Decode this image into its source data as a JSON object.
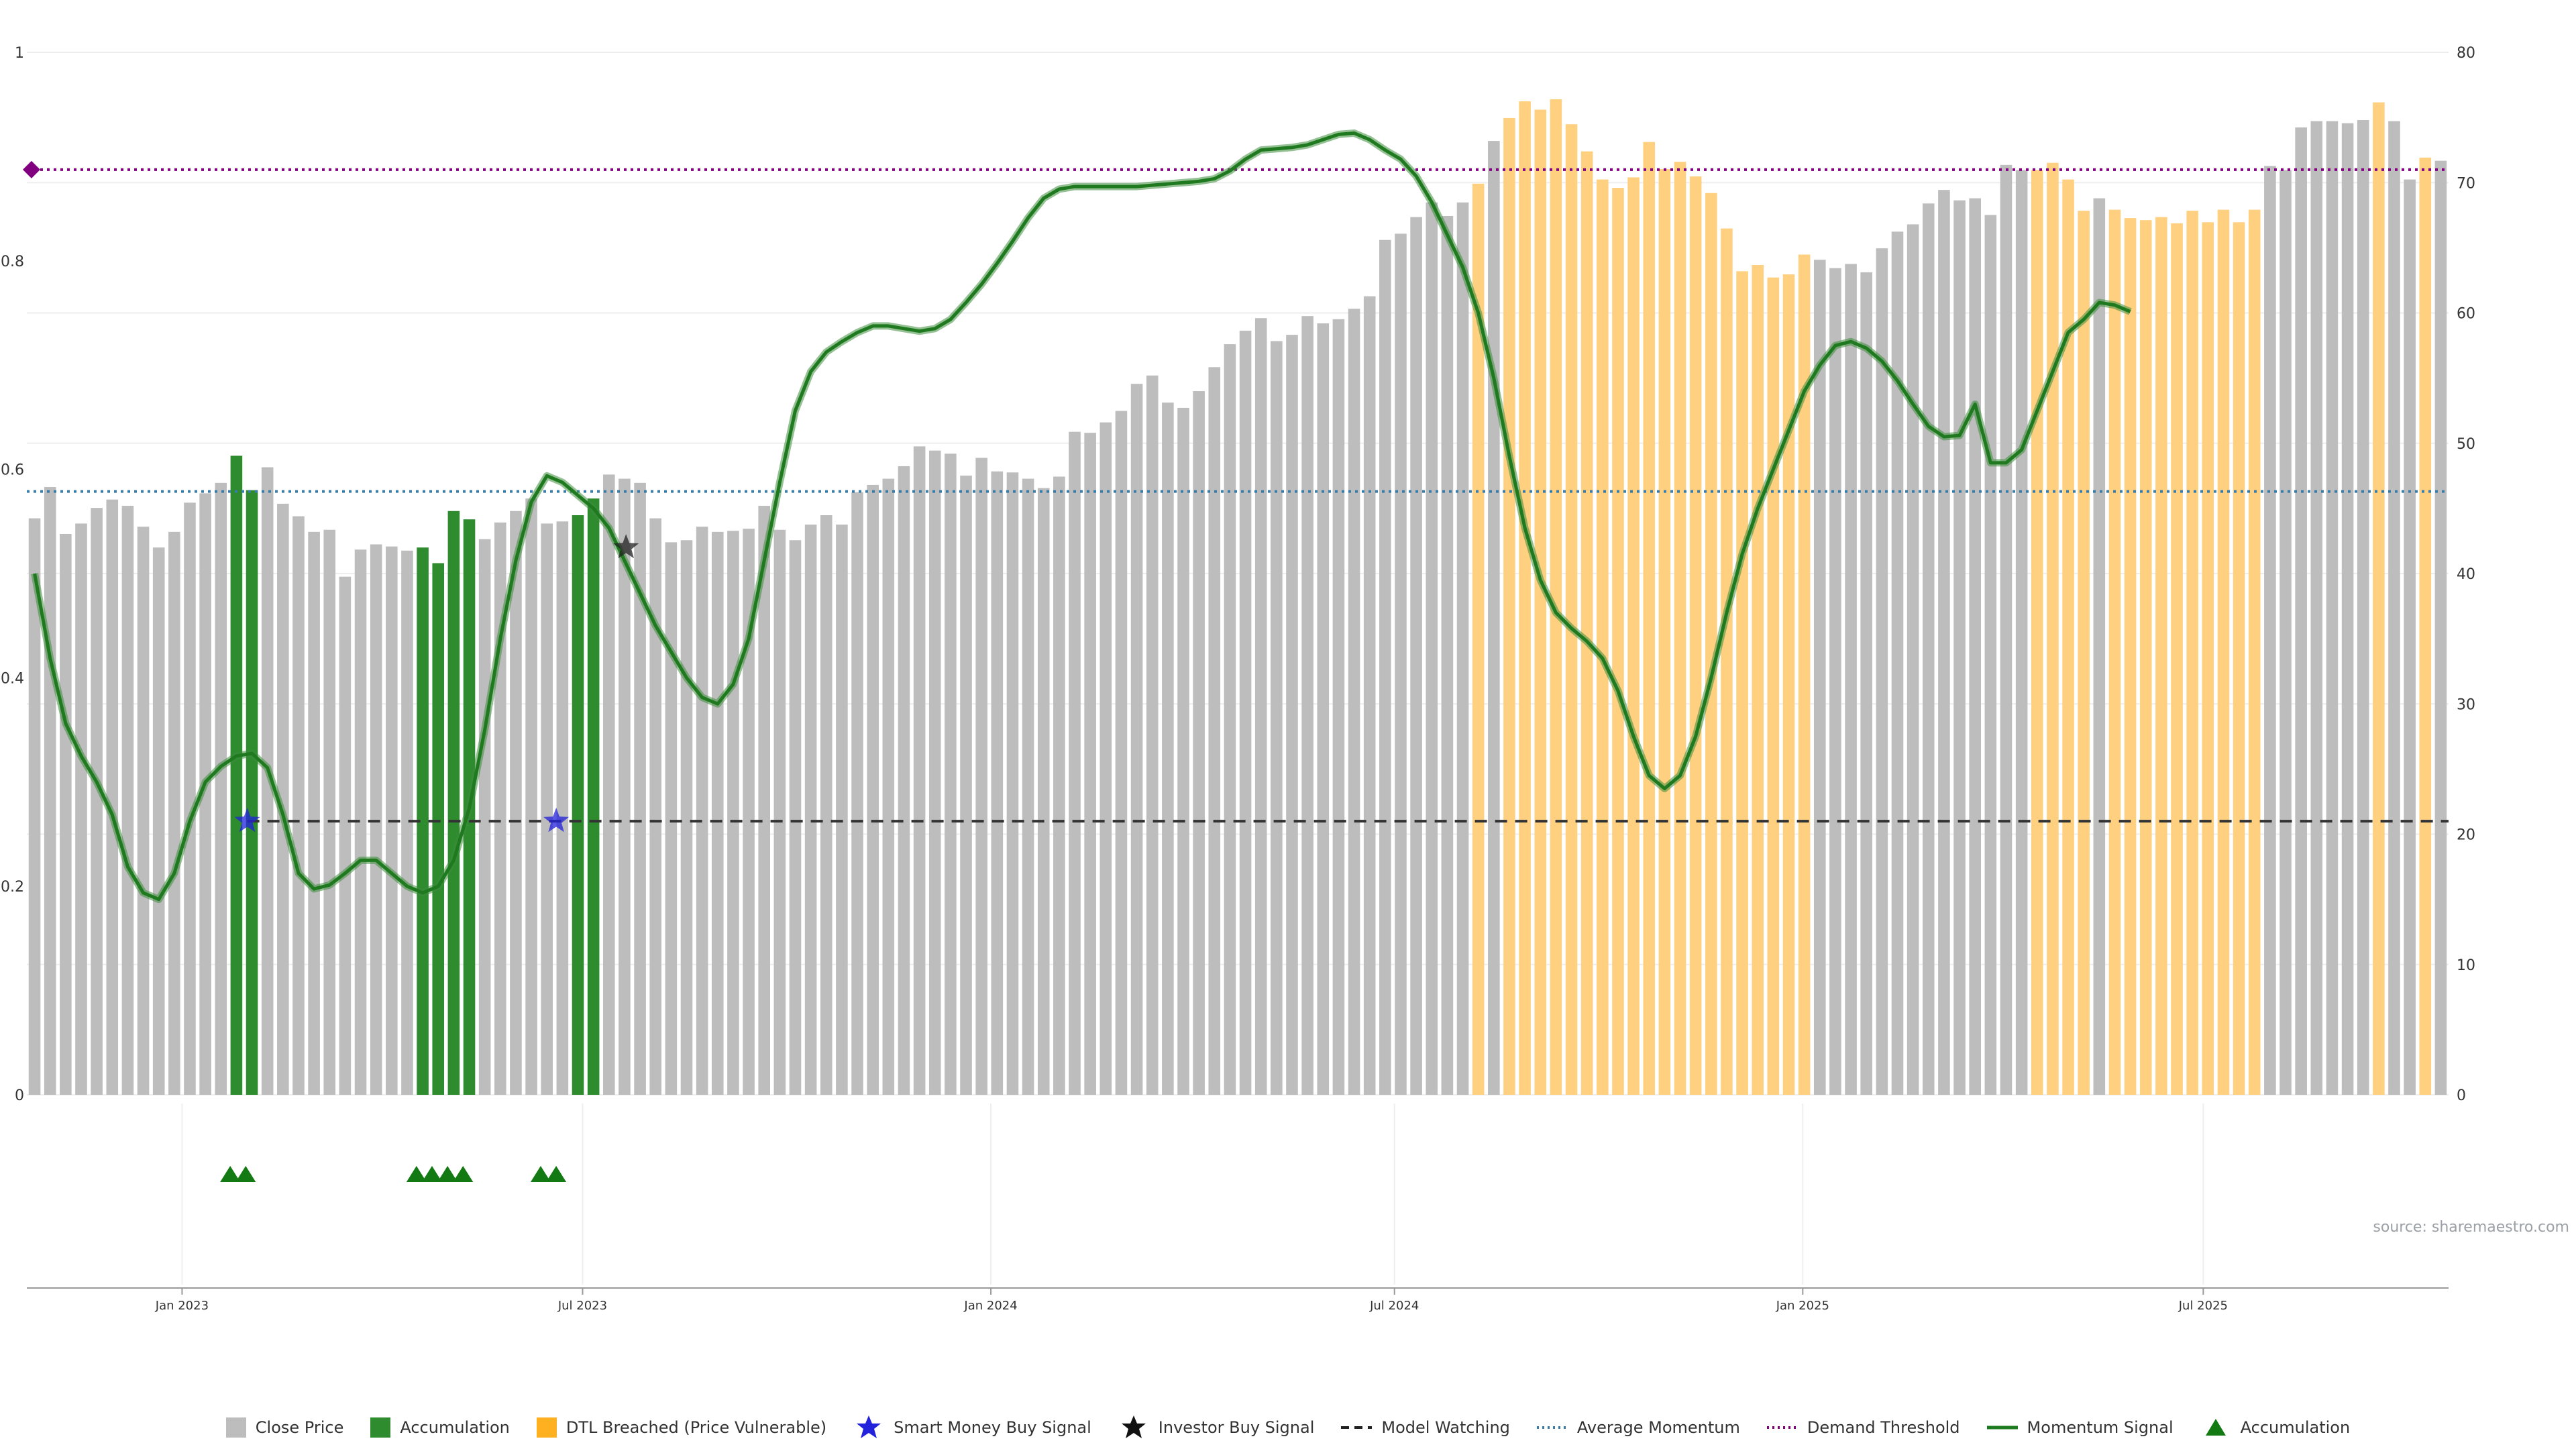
{
  "colors": {
    "close": "#bdbdbd",
    "accumulation": "#2e8b2e",
    "dtl": "#ffd080",
    "dtl_legend": "#ffb020",
    "smart_money": "#2222dd",
    "investor": "#222222",
    "model_watching": "#333333",
    "avg_momentum": "#3a7ca8",
    "demand_threshold": "#800080",
    "momentum": "#1f7a1f",
    "accum_marker": "#137a13"
  },
  "legend": {
    "close_price": "Close Price",
    "accumulation": "Accumulation",
    "dtl": "DTL Breached (Price Vulnerable)",
    "smart_money": "Smart Money Buy Signal",
    "investor": "Investor Buy Signal",
    "model_watching": "Model Watching",
    "avg_momentum": "Average Momentum",
    "demand_threshold": "Demand Threshold",
    "momentum_signal": "Momentum Signal",
    "accumulation_marker": "Accumulation"
  },
  "source": "source: sharemaestro.com",
  "chart_data": {
    "type": "bar",
    "title": "",
    "xlabel": "",
    "ylabel": "",
    "ylim_left": [
      0,
      1
    ],
    "ylim_right": [
      0,
      80
    ],
    "left_ticks": [
      "0",
      "0.2",
      "0.4",
      "0.6",
      "0.8",
      "1"
    ],
    "right_ticks": [
      "0",
      "10",
      "20",
      "30",
      "40",
      "50",
      "60",
      "70",
      "80"
    ],
    "x_tick_labels": [
      "Jan 2023",
      "Jul 2023",
      "Jan 2024",
      "Jul 2024",
      "Jan 2025",
      "Jul 2025"
    ],
    "x_tick_weeks": [
      9.5,
      35.3,
      61.6,
      87.6,
      113.9,
      139.7
    ],
    "close_price": [
      0.553,
      0.583,
      0.538,
      0.548,
      0.563,
      0.571,
      0.565,
      0.545,
      0.525,
      0.54,
      0.568,
      0.577,
      0.587,
      0.613,
      0.58,
      0.602,
      0.567,
      0.555,
      0.54,
      0.542,
      0.497,
      0.523,
      0.528,
      0.526,
      0.522,
      0.525,
      0.51,
      0.56,
      0.552,
      0.533,
      0.549,
      0.56,
      0.572,
      0.548,
      0.55,
      0.556,
      0.572,
      0.595,
      0.591,
      0.587,
      0.553,
      0.53,
      0.532,
      0.545,
      0.54,
      0.541,
      0.543,
      0.565,
      0.542,
      0.532,
      0.547,
      0.556,
      0.547,
      0.578,
      0.585,
      0.591,
      0.603,
      0.622,
      0.618,
      0.615,
      0.594,
      0.611,
      0.598,
      0.597,
      0.591,
      0.582,
      0.593,
      0.636,
      0.635,
      0.645,
      0.656,
      0.682,
      0.69,
      0.664,
      0.659,
      0.675,
      0.698,
      0.72,
      0.733,
      0.745,
      0.723,
      0.729,
      0.747,
      0.74,
      0.744,
      0.754,
      0.766,
      0.82,
      0.826,
      0.842,
      0.856,
      0.843,
      0.856,
      0.874,
      0.915,
      0.937,
      0.953,
      0.945,
      0.955,
      0.931,
      0.905,
      0.878,
      0.87,
      0.88,
      0.914,
      0.888,
      0.895,
      0.881,
      0.865,
      0.831,
      0.79,
      0.796,
      0.784,
      0.787,
      0.806,
      0.801,
      0.793,
      0.797,
      0.789,
      0.812,
      0.828,
      0.835,
      0.855,
      0.868,
      0.858,
      0.86,
      0.844,
      0.892,
      0.887,
      0.887,
      0.894,
      0.878,
      0.848,
      0.86,
      0.849,
      0.841,
      0.839,
      0.842,
      0.836,
      0.848,
      0.837,
      0.849,
      0.837,
      0.849,
      0.891,
      0.887,
      0.928,
      0.934,
      0.934,
      0.932,
      0.935,
      0.952,
      0.934,
      0.878,
      0.899,
      0.896
    ],
    "bar_state": "nnnnnnnnnnnnnaannnnnnnnnnaaaannnnnnaannnnnnnnnnnnnnnnnnnnnnnnnnnnnnnnnnnnnnnnnnnnnnnnnnnnnnnndnddddddddddddddddddddnnnnnnnnnnnnnnddddnddddddddddnnnnnnndnndnddddddddddddd",
    "momentum_signal": [
      40,
      33.5,
      28.5,
      26,
      24,
      21.5,
      17.5,
      15.5,
      15,
      17,
      21,
      24,
      25.2,
      26,
      26.2,
      25.1,
      21.5,
      17,
      15.8,
      16.1,
      17,
      18,
      18,
      17,
      16,
      15.5,
      16,
      18,
      22,
      28,
      35,
      41,
      45.5,
      47.5,
      47,
      46,
      45,
      43.5,
      41,
      38.5,
      36,
      34,
      32,
      30.5,
      30,
      31.5,
      35,
      41,
      47,
      52.5,
      55.5,
      57,
      57.8,
      58.5,
      59,
      59,
      58.8,
      58.6,
      58.8,
      59.5,
      60.8,
      62.2,
      63.8,
      65.5,
      67.3,
      68.8,
      69.5,
      69.7,
      69.7,
      69.7,
      69.7,
      69.7,
      69.8,
      69.9,
      70,
      70.1,
      70.3,
      70.9,
      71.8,
      72.5,
      72.6,
      72.7,
      72.9,
      73.3,
      73.7,
      73.8,
      73.3,
      72.5,
      71.8,
      70.5,
      68.5,
      66,
      63.5,
      60,
      55,
      49,
      43.5,
      39.5,
      37,
      35.8,
      34.8,
      33.5,
      31,
      27.5,
      24.5,
      23.5,
      24.5,
      27.5,
      32,
      37,
      41.5,
      45,
      48,
      51,
      54,
      56,
      57.5,
      57.8,
      57.3,
      56.3,
      54.8,
      53,
      51.3,
      50.5,
      50.6,
      53,
      48.5,
      48.5,
      49.5,
      52.5,
      55.5,
      58.5,
      59.5,
      60.8,
      60.6,
      60.1
    ],
    "average_momentum": 46.3,
    "demand_threshold": 71,
    "demand_threshold_marker_week": 0,
    "model_watching": {
      "value": 21,
      "start_week": 13.7,
      "end_week": 155.5
    },
    "smart_money_buy_signals": [
      {
        "week": 13.7,
        "value": 21
      },
      {
        "week": 33.6,
        "value": 21
      }
    ],
    "investor_buy_signals": [
      {
        "week": 38.1,
        "value": 42
      }
    ],
    "accumulation_markers": [
      12.6,
      13.6,
      24.6,
      25.6,
      26.6,
      27.6,
      32.6,
      33.6
    ]
  }
}
